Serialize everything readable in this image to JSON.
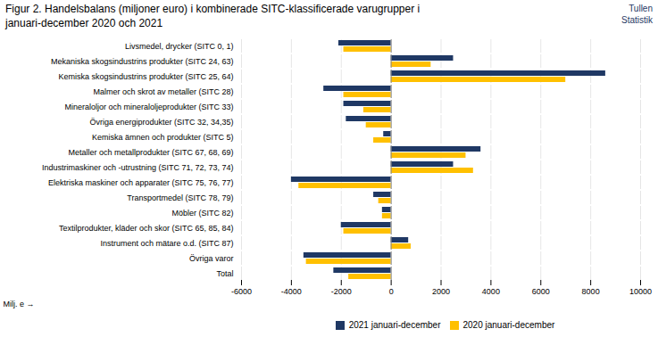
{
  "chart_data": {
    "type": "bar",
    "orientation": "horizontal",
    "title": "Figur 2. Handelsbalans (miljoner euro) i kombinerade SITC-klassificerade varugrupper i\njanuari-december 2020 och 2021",
    "annotations": [
      "Tullen\nStatistik"
    ],
    "categories": [
      "Livsmedel, drycker (SITC 0, 1)",
      "Mekaniska skogsindustrins produkter (SITC 24, 63)",
      "Kemiska skogsindustrins produkter (SITC 25, 64)",
      "Malmer och skrot av metaller (SITC 28)",
      "Mineraloljor och mineraloljeprodukter (SITC 33)",
      "Övriga energiprodukter (SITC 32, 34,35)",
      "Kemiska ämnen och produkter (SITC 5)",
      "Metaller och metallprodukter (SITC 67, 68, 69)",
      "Industrimaskiner och -utrustning (SITC 71, 72, 73, 74)",
      "Elektriska maskiner och apparater (SITC 75, 76, 77)",
      "Transportmedel (SITC 78, 79)",
      "Möbler (SITC 82)",
      "Textilprodukter, kläder och skor (SITC 65, 85, 84)",
      "Instrument och mätare o.d. (SITC 87)",
      "Övriga varor",
      "Total"
    ],
    "series": [
      {
        "name": "2021 januari-december",
        "color": "#1F3864",
        "values": [
          -2100,
          2500,
          8600,
          -2700,
          -1900,
          -1800,
          -300,
          3600,
          2500,
          -4000,
          -700,
          -350,
          -2000,
          700,
          -3500,
          -2300
        ]
      },
      {
        "name": "2020 januari-december",
        "color": "#FFC000",
        "values": [
          -1900,
          1600,
          7000,
          -1900,
          -1100,
          -1000,
          -700,
          3000,
          3300,
          -3700,
          -500,
          -350,
          -1900,
          800,
          -3400,
          -1700
        ]
      }
    ],
    "xlabel": "Milj. e",
    "xlim": [
      -6000,
      10000
    ],
    "xticks": [
      -6000,
      -4000,
      -2000,
      0,
      2000,
      4000,
      6000,
      8000,
      10000
    ],
    "grid": true,
    "legend": "bottom"
  }
}
